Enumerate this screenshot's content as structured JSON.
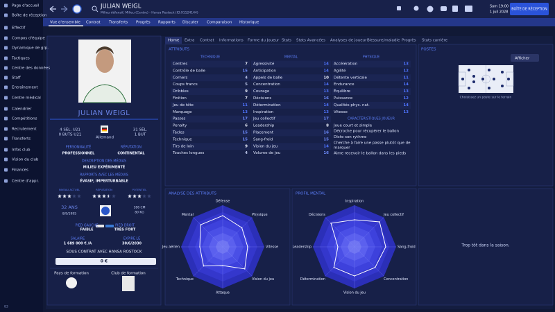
{
  "sidebar": [
    "Page d'accueil",
    "Boîte de réception",
    "Effectif",
    "Compos d'équipe",
    "Dynamique de grp.",
    "Tactiques",
    "Centre des données",
    "Staff",
    "Entraînement",
    "Centre médical",
    "Calendrier",
    "Compétitions",
    "Recrutement",
    "Transferts",
    "Infos club",
    "Vision du club",
    "Finances",
    "Centre d'appr."
  ],
  "footer": "83",
  "header": {
    "name": "JULIAN WEIGL",
    "subtitle": "Milieu défensif, Milieu (Centre) - Hansa Rostock (ID:91124144)",
    "day": "Sam 19:00",
    "date": "1 juil 2028",
    "inbox_button": "BOÎTE DE RÉCEPTION"
  },
  "menu": [
    "Vue d'ensemble",
    "Contrat",
    "Transferts",
    "Progrès",
    "Rapports",
    "Discuter",
    "Comparaison",
    "Historique"
  ],
  "tabs": [
    "Home",
    "Extra",
    "Contrat",
    "Informations",
    "Forme du Joueur",
    "Stats",
    "Stats Avancées",
    "Analyses de joueur",
    "Blessure/maladie",
    "Progrès",
    "Stats carrière"
  ],
  "profile": {
    "name": "JULIAN WEIGL",
    "u21_caps": "4 SÉL. U21",
    "u21_goals": "0 BUTS U21",
    "nationality": "Allemand",
    "caps": "31 SÉL.",
    "goals": "1 BUT",
    "personality_label": "PERSONNALITÉ",
    "personality": "PROFESSIONNEL",
    "reputation_label": "RÉPUTATION",
    "reputation": "CONTINENTAL",
    "media_desc_label": "DESCRIPTION DES MÉDIAS",
    "media_desc": "MILIEU EXPÉRIMENTÉ",
    "media_rel_label": "RAPPORTS AVEC LES MÉDIAS",
    "media_rel": "ÉVASIF, IMPERTURBABLE",
    "stars_max": 5,
    "ratings": [
      {
        "label": "NIVEAU ACTUEL",
        "stars": 3
      },
      {
        "label": "RÉPUTATION",
        "stars": 3.5
      },
      {
        "label": "POTENTIEL",
        "stars": 3
      }
    ],
    "age": "32 ANS",
    "dob": "8/9/1995",
    "height": "186 CM",
    "weight": "80 KG",
    "left_foot_label": "PIED GAUCHE",
    "left_foot": "FAIBLE",
    "right_foot_label": "PIED DROIT",
    "right_foot": "TRÈS FORT",
    "wage_label": "SALAIRE",
    "wage": "1 689 000 € /A",
    "expiry_label": "EXPIRE LE",
    "expiry": "30/6/2030",
    "contract": "SOUS CONTRAT AVEC HANSA ROSTOCK",
    "value": "0 €",
    "training_country": "Pays de formation",
    "training_club": "Club de formation"
  },
  "attributes": {
    "title": "ATTRIBUTS",
    "groups": [
      {
        "name": "TECHNIQUE",
        "items": [
          {
            "name": "Centres",
            "value": 7
          },
          {
            "name": "Contrôle de balle",
            "value": 15
          },
          {
            "name": "Corners",
            "value": 4
          },
          {
            "name": "Coups francs",
            "value": 5
          },
          {
            "name": "Dribbles",
            "value": 9
          },
          {
            "name": "Finition",
            "value": 7
          },
          {
            "name": "Jeu de tête",
            "value": 11
          },
          {
            "name": "Marquage",
            "value": 13
          },
          {
            "name": "Passes",
            "value": 17
          },
          {
            "name": "Penalty",
            "value": 6
          },
          {
            "name": "Tacles",
            "value": 15
          },
          {
            "name": "Technique",
            "value": 15
          },
          {
            "name": "Tirs de loin",
            "value": 9
          },
          {
            "name": "Touches longues",
            "value": 4
          }
        ]
      },
      {
        "name": "MENTAL",
        "items": [
          {
            "name": "Agressivité",
            "value": 14
          },
          {
            "name": "Anticipation",
            "value": 14
          },
          {
            "name": "Appels de balle",
            "value": 10
          },
          {
            "name": "Concentration",
            "value": 14
          },
          {
            "name": "Courage",
            "value": 13
          },
          {
            "name": "Décisions",
            "value": 16
          },
          {
            "name": "Détermination",
            "value": 14
          },
          {
            "name": "Inspiration",
            "value": 13
          },
          {
            "name": "Jeu collectif",
            "value": 17
          },
          {
            "name": "Leadership",
            "value": 8
          },
          {
            "name": "Placement",
            "value": 16
          },
          {
            "name": "Sang-froid",
            "value": 15
          },
          {
            "name": "Vision du jeu",
            "value": 14
          },
          {
            "name": "Volume de jeu",
            "value": 16
          }
        ]
      },
      {
        "name": "PHYSIQUE",
        "items": [
          {
            "name": "Accélération",
            "value": 13
          },
          {
            "name": "Agilité",
            "value": 12
          },
          {
            "name": "Détente verticale",
            "value": 11
          },
          {
            "name": "Endurance",
            "value": 14
          },
          {
            "name": "Équilibre",
            "value": 13
          },
          {
            "name": "Puissance",
            "value": 12
          },
          {
            "name": "Qualités phys. nat.",
            "value": 14
          },
          {
            "name": "Vitesse",
            "value": 13
          }
        ]
      }
    ],
    "traits_title": "CARACTÉRISTIQUES JOUEUR",
    "traits": [
      "Joue court et simple",
      "Décroche pour récupérer le ballon",
      "Dicte son rythme",
      "Cherche à faire une passe plutôt que de marquer",
      "Aime recevoir le ballon dans les pieds"
    ]
  },
  "positions": {
    "title": "POSTES",
    "button": "Afficher",
    "hint": "Choisissez un poste sur le terrain"
  },
  "chart_data": [
    {
      "type": "radar",
      "title": "ANALYSE DES ATTRIBUTS",
      "categories": [
        "Défense",
        "Physique",
        "Vitesse",
        "Vision du jeu",
        "Attaque",
        "Technique",
        "Jeu aérien",
        "Mental"
      ],
      "values": [
        15,
        13,
        12,
        15,
        9,
        13,
        11,
        15
      ],
      "rlim": [
        0,
        20
      ],
      "color": "#ffffff"
    },
    {
      "type": "radar",
      "title": "PROFIL MENTAL",
      "categories": [
        "Inspiration",
        "Jeu collectif",
        "Sang-froid",
        "Concentration",
        "Vision du jeu",
        "Détermination",
        "Leadership",
        "Décisions"
      ],
      "values": [
        13,
        17,
        15,
        14,
        14,
        14,
        8,
        16
      ],
      "rlim": [
        0,
        20
      ],
      "color": "#ffffff"
    }
  ],
  "season_note": "Trop tôt dans la saison."
}
